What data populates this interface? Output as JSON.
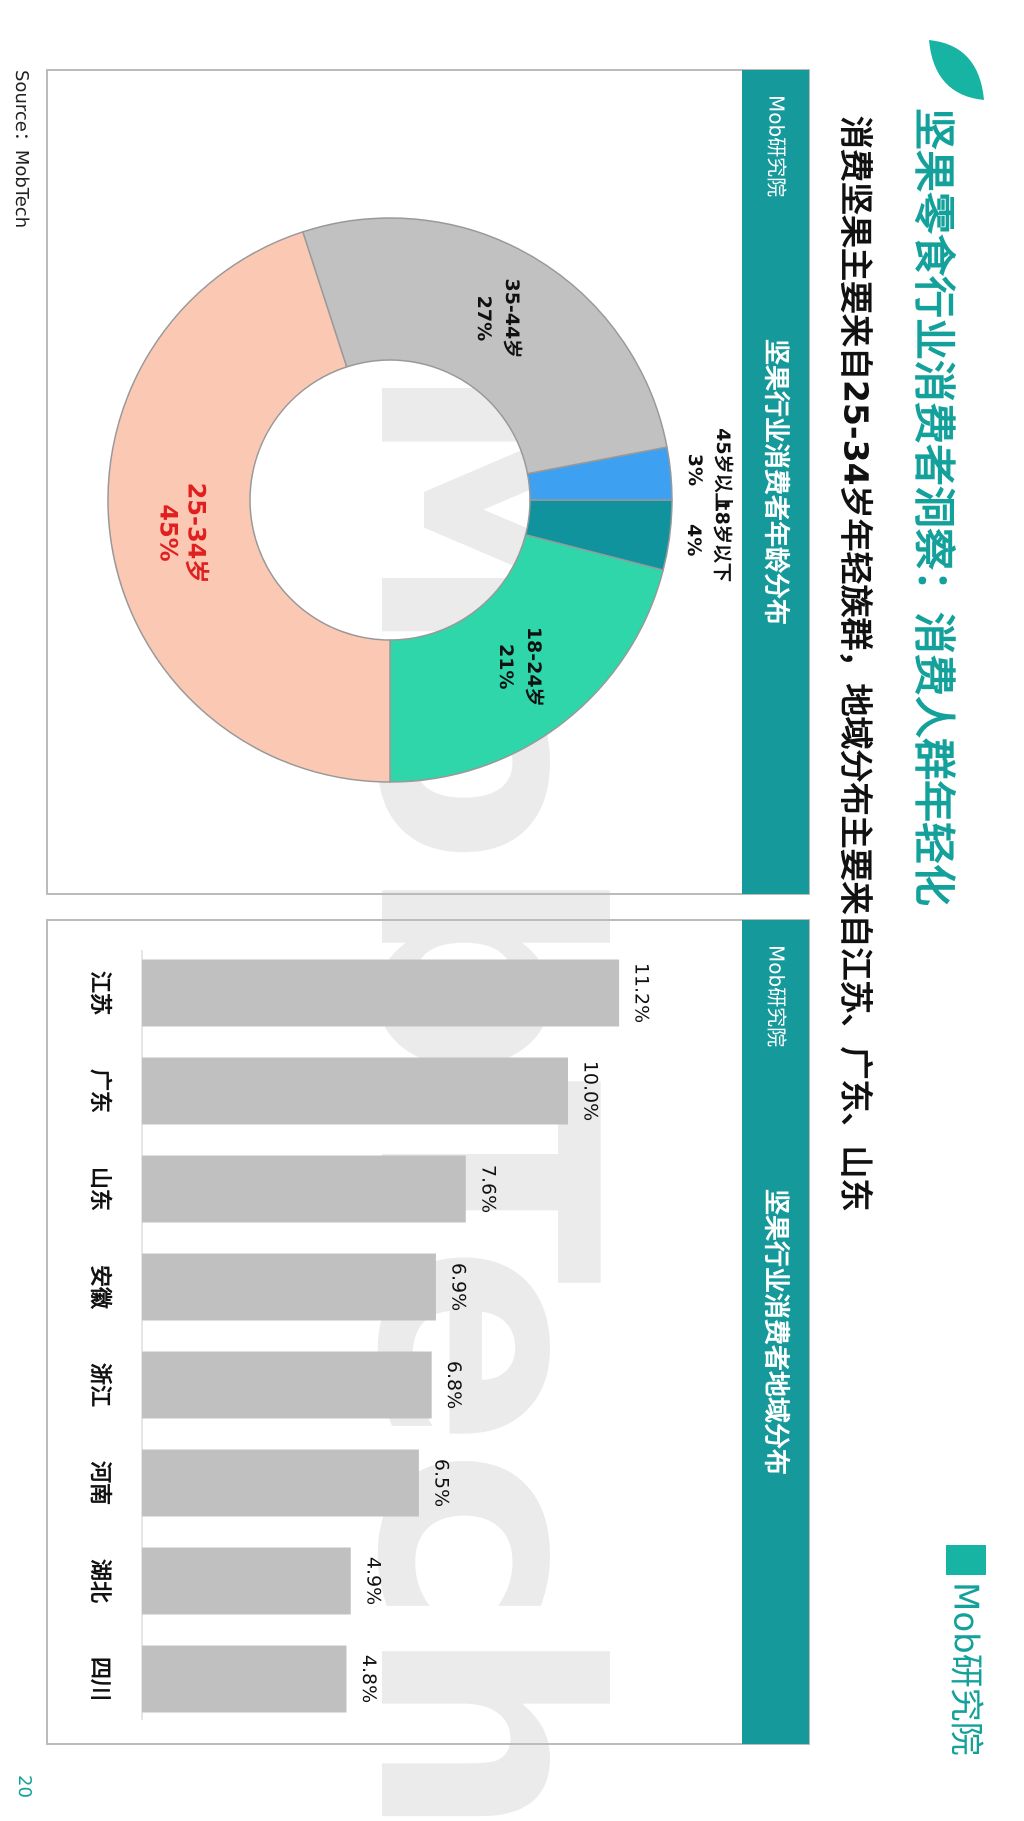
{
  "title": "坚果零食行业消费者洞察：消费人群年轻化",
  "subtitle": "消费坚果主要来自25-34岁年轻族群，地域分布主要来自江苏、广东、山东",
  "brand": "Mob研究院",
  "watermark": "MobTech",
  "source": "Source：MobTech",
  "page_number": "20",
  "chart_data": [
    {
      "type": "donut",
      "title": "坚果行业消费者年龄分布",
      "categories": [
        "18岁以下",
        "18-24岁",
        "25-34岁",
        "35-44岁",
        "45岁以上"
      ],
      "values": [
        4,
        21,
        45,
        27,
        3
      ],
      "value_labels": [
        "4%",
        "21%",
        "45%",
        "27%",
        "3%"
      ],
      "colors": [
        "#10939c",
        "#2ed6a9",
        "#fbc9b3",
        "#c1c1c1",
        "#3ea0f0"
      ]
    },
    {
      "type": "bar",
      "title": "坚果行业消费者地域分布",
      "categories": [
        "江苏",
        "广东",
        "山东",
        "安徽",
        "浙江",
        "河南",
        "湖北",
        "四川"
      ],
      "values": [
        11.2,
        10.0,
        7.6,
        6.9,
        6.8,
        6.5,
        4.9,
        4.8
      ],
      "value_labels": [
        "11.2%",
        "10.0%",
        "7.6%",
        "6.9%",
        "6.8%",
        "6.5%",
        "4.9%",
        "4.8%"
      ],
      "color": "#c0c0c0"
    }
  ]
}
